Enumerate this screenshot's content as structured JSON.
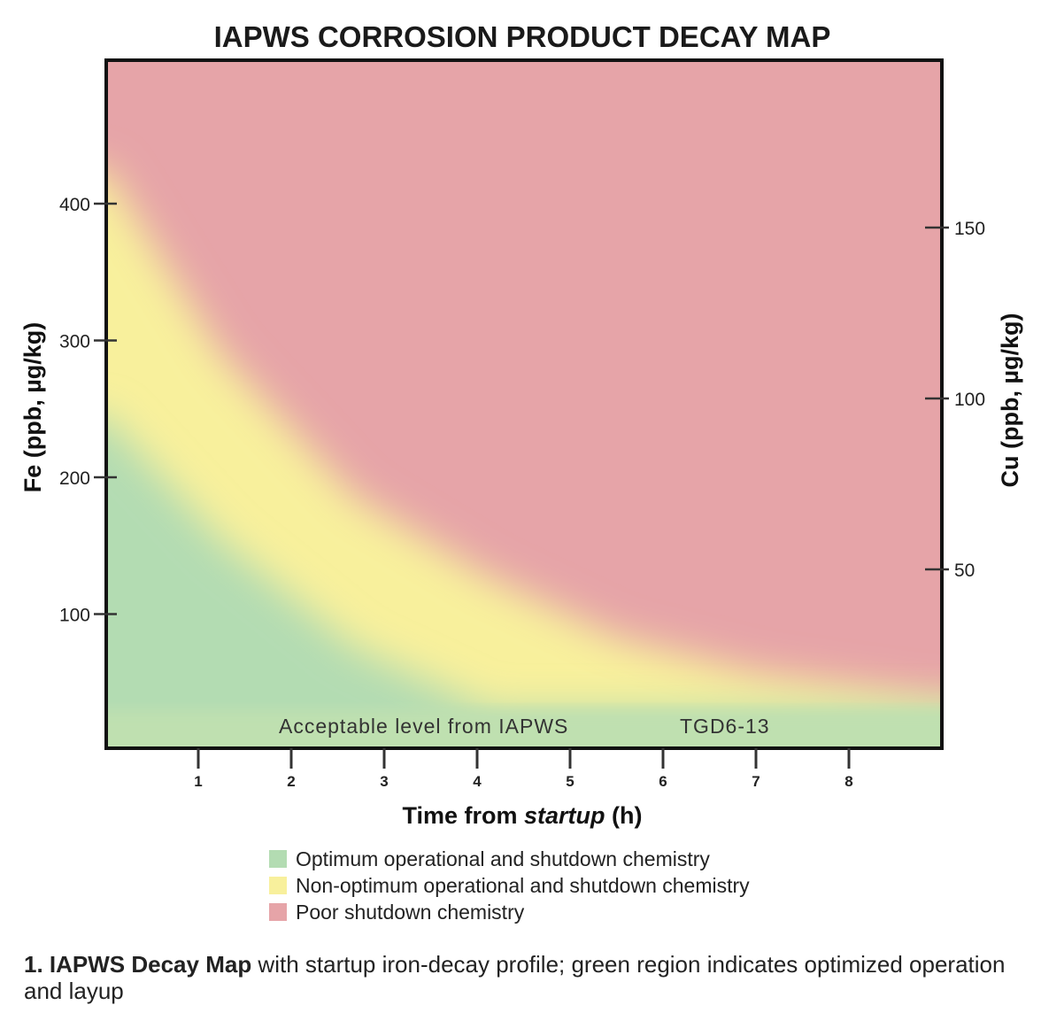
{
  "chart_data": {
    "type": "area",
    "title": "IAPWS CORROSION PRODUCT DECAY MAP",
    "xlabel_prefix": "Time from ",
    "xlabel_italic": "startup",
    "xlabel_suffix": " (h)",
    "ylabel_left": "Fe (ppb, µg/kg)",
    "ylabel_right": "Cu (ppb, µg/kg)",
    "xlim": [
      0,
      9
    ],
    "ylim_left": [
      0,
      503
    ],
    "ylim_right": [
      0,
      216
    ],
    "x_ticks": [
      1,
      2,
      3,
      4,
      5,
      6,
      7,
      8
    ],
    "y_ticks_left": [
      100,
      200,
      300,
      400
    ],
    "y_ticks_right": [
      50,
      100,
      150
    ],
    "regions": [
      {
        "name": "Optimum operational and shutdown chemistry",
        "color": "#b3dcb2",
        "upper_boundary": [
          [
            0,
            245
          ],
          [
            1.25,
            154
          ],
          [
            2.68,
            76
          ],
          [
            3.9,
            38
          ],
          [
            4.1,
            30
          ],
          [
            9,
            30
          ]
        ]
      },
      {
        "name": "Non-optimum operational and shutdown chemistry",
        "color": "#f8f09c",
        "upper_boundary": [
          [
            0,
            426
          ],
          [
            1.25,
            290
          ],
          [
            2.68,
            186
          ],
          [
            4.1,
            128
          ],
          [
            5.5,
            83
          ],
          [
            7,
            57
          ],
          [
            9,
            38
          ]
        ]
      },
      {
        "name": "Poor shutdown chemistry",
        "color": "#e6a4a8",
        "upper_boundary": [
          [
            0,
            503
          ],
          [
            9,
            503
          ]
        ]
      }
    ],
    "acceptable_level": {
      "value_fe": 30,
      "label_left": "Acceptable level from IAPWS",
      "label_right": "TGD6-13",
      "color": "#bfe0b0"
    }
  },
  "caption": {
    "bold": "1. IAPWS Decay Map",
    "text": " with startup iron-decay profile; green region indicates optimized operation and layup"
  }
}
